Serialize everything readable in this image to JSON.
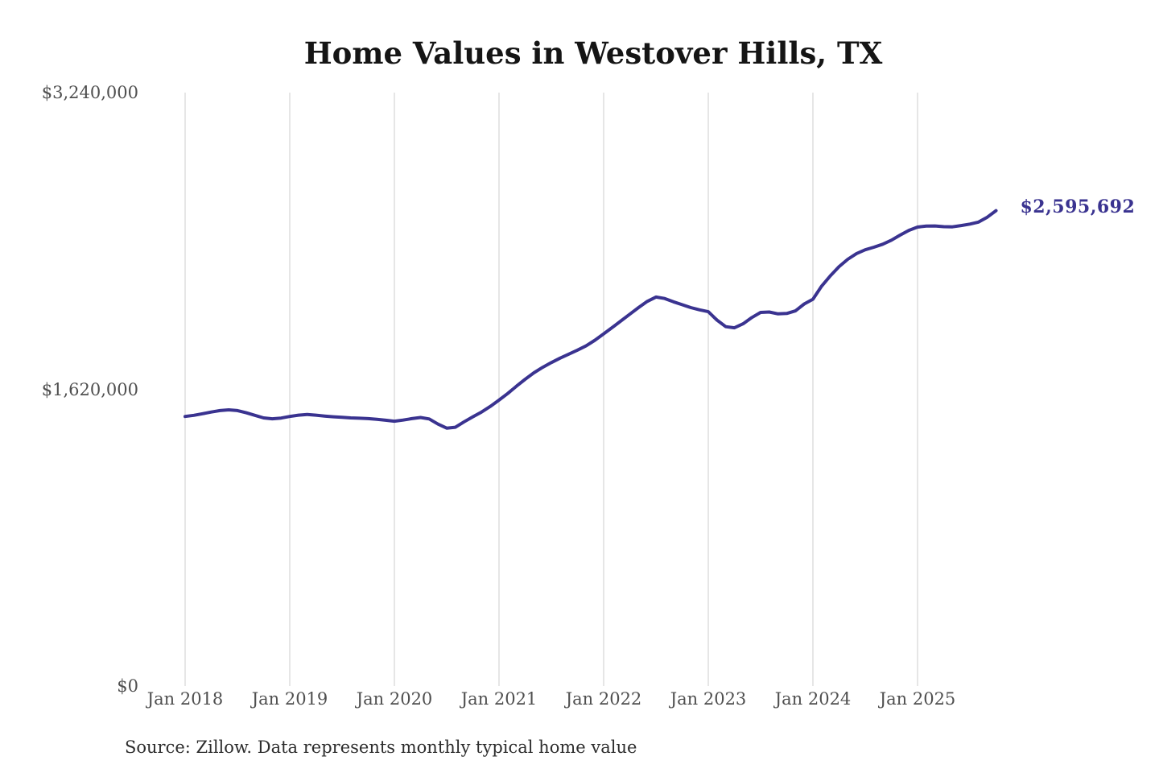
{
  "chart": {
    "title": "Home Values in Westover Hills, TX",
    "end_label": "$2,595,692",
    "source": "Source: Zillow. Data represents monthly typical home value",
    "colors": {
      "line": "#3a3390",
      "grid": "#cccccc",
      "axis_text": "#4f4f4f",
      "title_text": "#151515",
      "source_text": "#2d2d2d",
      "end_label_text": "#3a3390"
    }
  },
  "chart_data": {
    "type": "line",
    "title": "Home Values in Westover Hills, TX",
    "xlabel": "",
    "ylabel": "",
    "x_start": "2018-01",
    "x_interval": "month",
    "x_tick_labels": [
      "Jan 2018",
      "Jan 2019",
      "Jan 2020",
      "Jan 2021",
      "Jan 2022",
      "Jan 2023",
      "Jan 2024",
      "Jan 2025"
    ],
    "y_ticks": [
      0,
      1620000,
      3240000
    ],
    "y_tick_labels": [
      "$0",
      "$1,620,000",
      "$3,240,000"
    ],
    "ylim": [
      0,
      3240000
    ],
    "grid": "vertical-only",
    "legend": "none",
    "annotation": {
      "text": "$2,595,692",
      "value": 2595692,
      "position": "line-end"
    },
    "source": "Source: Zillow. Data represents monthly typical home value",
    "series": [
      {
        "name": "Monthly typical home value",
        "values": [
          1472000,
          1478000,
          1487000,
          1496000,
          1504000,
          1508000,
          1504000,
          1492000,
          1478000,
          1464000,
          1459000,
          1463000,
          1472000,
          1479000,
          1483000,
          1479000,
          1474000,
          1470000,
          1467000,
          1464000,
          1462000,
          1460000,
          1456000,
          1451000,
          1446000,
          1452000,
          1460000,
          1466000,
          1458000,
          1430000,
          1408000,
          1413000,
          1443000,
          1470000,
          1496000,
          1527000,
          1561000,
          1597000,
          1637000,
          1675000,
          1710000,
          1740000,
          1766000,
          1790000,
          1812000,
          1834000,
          1858000,
          1888000,
          1923000,
          1958000,
          1994000,
          2030000,
          2066000,
          2100000,
          2124000,
          2116000,
          2098000,
          2082000,
          2066000,
          2054000,
          2044000,
          1998000,
          1962000,
          1956000,
          1978000,
          2012000,
          2040000,
          2042000,
          2032000,
          2034000,
          2048000,
          2086000,
          2112000,
          2183000,
          2240000,
          2290000,
          2330000,
          2361000,
          2382000,
          2396000,
          2412000,
          2434000,
          2462000,
          2488000,
          2506000,
          2511000,
          2512000,
          2508000,
          2507000,
          2514000,
          2522000,
          2533000,
          2560000,
          2595692
        ]
      }
    ]
  }
}
